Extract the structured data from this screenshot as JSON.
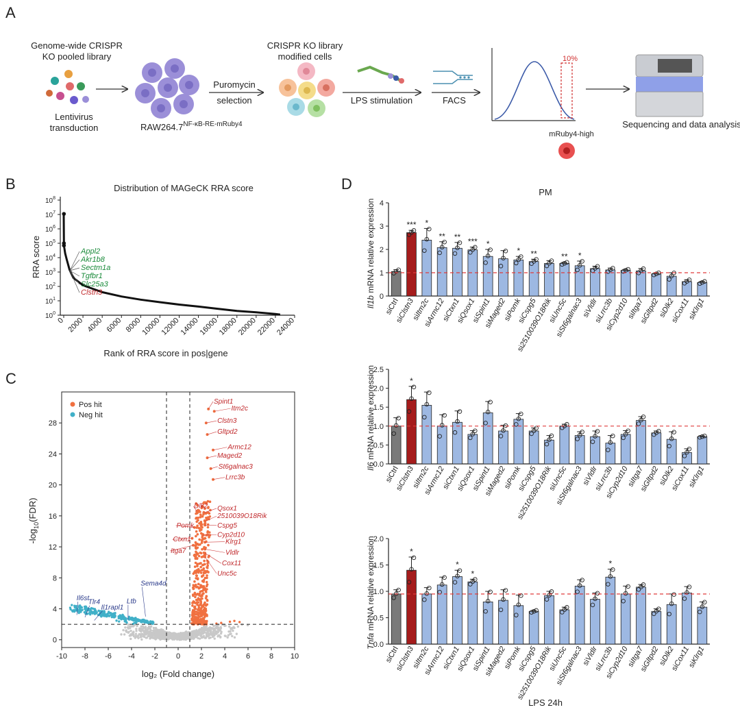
{
  "panel_letters": {
    "a": "A",
    "b": "B",
    "c": "C",
    "d": "D"
  },
  "panel_a": {
    "step1_title_line1": "Genome-wide CRISPR",
    "step1_title_line2": "KO pooled library",
    "lentivirus_line1": "Lentivirus",
    "lentivirus_line2": "transduction",
    "cell_line_base": "RAW264.7",
    "cell_line_sup": "NF-κB-RE-mRuby4",
    "puromycin_line1": "Puromycin",
    "puromycin_line2": "selection",
    "modified_line1": "CRISPR KO library",
    "modified_line2": "modified cells",
    "lps": "LPS stimulation",
    "facs": "FACS",
    "gate_label": "10%",
    "mruby_label": "mRuby4-high",
    "sequencing": "Sequencing and data analysis",
    "colors": {
      "cell": "#9b8fd8",
      "curve": "#3b5aa8",
      "gate": "#d03030"
    }
  },
  "panel_b": {
    "chart_data": {
      "type": "line",
      "title": "Distribution of MAGeCK RRA score",
      "xlabel": "Rank of RRA score in pos|gene",
      "ylabel": "RRA score",
      "xlim": [
        0,
        24000
      ],
      "x_ticks": [
        "0",
        "2000",
        "4000",
        "6000",
        "8000",
        "10000",
        "12000",
        "14000",
        "16000",
        "18000",
        "20000",
        "22000",
        "24000"
      ],
      "ylim_log10": [
        0,
        8
      ],
      "y_tick_base": "10",
      "y_tick_exps": [
        "0",
        "1",
        "2",
        "3",
        "4",
        "5",
        "6",
        "7",
        "8"
      ],
      "curve": [
        [
          0,
          10000000
        ],
        [
          20,
          100000
        ],
        [
          60,
          50000
        ],
        [
          150,
          20000
        ],
        [
          300,
          8000
        ],
        [
          600,
          1500
        ],
        [
          1000,
          400
        ],
        [
          2000,
          120
        ],
        [
          4000,
          40
        ],
        [
          6000,
          20
        ],
        [
          8000,
          12
        ],
        [
          10000,
          8
        ],
        [
          12000,
          5.5
        ],
        [
          14000,
          4
        ],
        [
          16000,
          2.8
        ],
        [
          18000,
          2
        ],
        [
          20000,
          1.6
        ],
        [
          22000,
          1.2
        ],
        [
          22500,
          1.1
        ]
      ],
      "outliers": [
        [
          20,
          11000000
        ],
        [
          20,
          100000
        ],
        [
          20,
          70000
        ]
      ],
      "labels": [
        {
          "text": "Appl2",
          "color": "#1a8a3a"
        },
        {
          "text": "Akr1b8",
          "color": "#1a8a3a"
        },
        {
          "text": "Sectm1a",
          "color": "#1a8a3a"
        },
        {
          "text": "Tgfbr1",
          "color": "#1a8a3a"
        },
        {
          "text": "Slc25a3",
          "color": "#1a8a3a"
        },
        {
          "text": "Clstn3",
          "color": "#c0282b"
        }
      ]
    }
  },
  "panel_c": {
    "chart_data": {
      "type": "scatter",
      "xlabel": "log₂ (Fold change)",
      "ylabel_base": "-log",
      "ylabel_sub": "10",
      "ylabel_tail": "(FDR)",
      "xlim": [
        -10,
        10
      ],
      "ylim": [
        -1,
        32
      ],
      "x_ticks": [
        "-10",
        "-8",
        "-6",
        "-4",
        "-2",
        "0",
        "2",
        "4",
        "6",
        "8",
        "10"
      ],
      "y_ticks": [
        "0",
        "4",
        "8",
        "12",
        "16",
        "20",
        "24",
        "28"
      ],
      "vlines": [
        -1,
        1
      ],
      "hline": 2,
      "legend": [
        {
          "name": "Pos hit",
          "color": "#f07040"
        },
        {
          "name": "Neg hit",
          "color": "#40b0c8"
        }
      ],
      "pos_labels": [
        {
          "name": "Spint1",
          "x": 2.6,
          "y": 29.8,
          "lx": 3.0,
          "ly": 30.5
        },
        {
          "name": "Itm2c",
          "x": 3.1,
          "y": 29.5,
          "lx": 4.5,
          "ly": 29.6
        },
        {
          "name": "Clstn3",
          "x": 2.4,
          "y": 28.0,
          "lx": 3.3,
          "ly": 28.0
        },
        {
          "name": "Gltpd2",
          "x": 2.5,
          "y": 26.5,
          "lx": 3.3,
          "ly": 26.6
        },
        {
          "name": "Armc12",
          "x": 3.0,
          "y": 24.5,
          "lx": 4.2,
          "ly": 24.6
        },
        {
          "name": "Maged2",
          "x": 2.5,
          "y": 23.5,
          "lx": 3.3,
          "ly": 23.5
        },
        {
          "name": "St6galnac3",
          "x": 2.8,
          "y": 22.1,
          "lx": 3.4,
          "ly": 22.1
        },
        {
          "name": "Lrrc3b",
          "x": 3.0,
          "y": 20.7,
          "lx": 4.0,
          "ly": 20.7
        },
        {
          "name": "Dlk2",
          "x": 1.6,
          "y": 16.6,
          "lx": 1.3,
          "ly": 17.0
        },
        {
          "name": "Qsox1",
          "x": 2.2,
          "y": 16.4,
          "lx": 3.3,
          "ly": 16.7
        },
        {
          "name": "2510039O18Rik",
          "x": 2.3,
          "y": 15.3,
          "lx": 3.3,
          "ly": 15.7
        },
        {
          "name": "Cspg5",
          "x": 2.3,
          "y": 14.8,
          "lx": 3.3,
          "ly": 14.5
        },
        {
          "name": "Pomk",
          "x": 1.4,
          "y": 14.5,
          "lx": -0.2,
          "ly": 14.5
        },
        {
          "name": "Cyp2d10",
          "x": 2.1,
          "y": 13.5,
          "lx": 3.3,
          "ly": 13.3
        },
        {
          "name": "Ctxn1",
          "x": 1.2,
          "y": 13.1,
          "lx": -0.5,
          "ly": 12.7
        },
        {
          "name": "Klrg1",
          "x": 2.3,
          "y": 12.6,
          "lx": 4.0,
          "ly": 12.4
        },
        {
          "name": "Itga7",
          "x": 1.3,
          "y": 12.2,
          "lx": -0.7,
          "ly": 11.2
        },
        {
          "name": "Vldlr",
          "x": 2.3,
          "y": 11.7,
          "lx": 4.0,
          "ly": 11.0
        },
        {
          "name": "Cox11",
          "x": 2.3,
          "y": 11.2,
          "lx": 3.7,
          "ly": 9.6
        },
        {
          "name": "Unc5c",
          "x": 2.3,
          "y": 10.7,
          "lx": 3.3,
          "ly": 8.3
        }
      ],
      "neg_labels": [
        {
          "name": "Il6st",
          "x": -8.7,
          "y": 3.2,
          "lx": -8.6,
          "ly": 5.1
        },
        {
          "name": "Tlr4",
          "x": -8.0,
          "y": 2.9,
          "lx": -7.6,
          "ly": 4.6
        },
        {
          "name": "Il1rapl1",
          "x": -7.2,
          "y": 2.5,
          "lx": -6.5,
          "ly": 3.9
        },
        {
          "name": "Ltb",
          "x": -4.3,
          "y": 2.6,
          "lx": -4.3,
          "ly": 4.7
        },
        {
          "name": "Sema4d",
          "x": -2.8,
          "y": 3.0,
          "lx": -3.1,
          "ly": 7.0
        }
      ]
    }
  },
  "panel_d": {
    "title": "PM",
    "footer": "LPS 24h",
    "colors": {
      "ctrl": "#7a7a7a",
      "hit": "#a51c1c",
      "bar": "#9db8e2",
      "dash": "#e03b3b"
    },
    "chart_data": [
      {
        "type": "bar",
        "gene": "Il1b",
        "ylabel_tail": " mRNA relative expression",
        "ylim": [
          0,
          4
        ],
        "y_ticks": [
          "0",
          "1",
          "2",
          "3",
          "4"
        ],
        "baseline": 1.0,
        "categories": [
          "siCtrl",
          "siClstn3",
          "siItm2c",
          "siArmc12",
          "siCtxn1",
          "siQsox1",
          "siSpint1",
          "siMaged2",
          "siPomk",
          "siCspg5",
          "si2510039O18Rik",
          "siUnc5c",
          "siSt6galnac3",
          "siVldlr",
          "siLrrc3b",
          "siCyp2d10",
          "siItga7",
          "siGltpd2",
          "siDlk2",
          "siCox11",
          "siKlrg1"
        ],
        "values": [
          1.05,
          2.72,
          2.4,
          2.08,
          2.05,
          1.98,
          1.7,
          1.6,
          1.55,
          1.48,
          1.4,
          1.4,
          1.3,
          1.18,
          1.12,
          1.1,
          1.08,
          0.95,
          0.85,
          0.62,
          0.58
        ],
        "errors": [
          0.08,
          0.1,
          0.5,
          0.25,
          0.25,
          0.12,
          0.3,
          0.35,
          0.15,
          0.1,
          0.12,
          0.05,
          0.2,
          0.1,
          0.08,
          0.05,
          0.1,
          0.05,
          0.15,
          0.08,
          0.05
        ],
        "sig": [
          "",
          "***",
          "*",
          "**",
          "**",
          "***",
          "*",
          "",
          "*",
          "**",
          "",
          "**",
          "*",
          "",
          "",
          "",
          "",
          "",
          "",
          "",
          ""
        ]
      },
      {
        "type": "bar",
        "gene": "Il6",
        "ylabel_tail": " mRNA relative expression",
        "ylim": [
          0,
          2.5
        ],
        "y_ticks": [
          "0.0",
          "0.5",
          "1.0",
          "1.5",
          "2.0",
          "2.5"
        ],
        "baseline": 1.0,
        "categories": [
          "siCtrl",
          "siClstn3",
          "siItm2c",
          "siArmc12",
          "siCtxn1",
          "siQsox1",
          "siSpint1",
          "siMaged2",
          "siPomk",
          "siCspg5",
          "si2510039O18Rik",
          "siUnc5c",
          "siSt6galnac3",
          "siVldlr",
          "siLrrc3b",
          "siCyp2d10",
          "siItga7",
          "siGltpd2",
          "siDlk2",
          "siCox11",
          "siKlrg1"
        ],
        "values": [
          1.0,
          1.7,
          1.55,
          1.0,
          1.1,
          0.78,
          1.35,
          0.87,
          1.18,
          0.87,
          0.63,
          1.0,
          0.75,
          0.72,
          0.55,
          0.78,
          1.15,
          0.82,
          0.65,
          0.3,
          0.72
        ],
        "errors": [
          0.22,
          0.35,
          0.35,
          0.3,
          0.3,
          0.1,
          0.3,
          0.15,
          0.15,
          0.08,
          0.12,
          0.05,
          0.1,
          0.15,
          0.2,
          0.1,
          0.1,
          0.05,
          0.2,
          0.1,
          0.02
        ],
        "sig": [
          "",
          "*",
          "",
          "",
          "",
          "",
          "",
          "",
          "",
          "",
          "",
          "",
          "",
          "",
          "",
          "",
          "",
          "",
          "",
          "",
          ""
        ]
      },
      {
        "type": "bar",
        "gene": "Tnfa",
        "ylabel_tail": " mRNA relative expression",
        "ylim": [
          0,
          2.0
        ],
        "y_ticks": [
          "0.0",
          "0.5",
          "1.0",
          "1.5",
          "2.0"
        ],
        "baseline": 0.95,
        "categories": [
          "siCtrl",
          "siClstn3",
          "siItm2c",
          "siArmc12",
          "siCtxn1",
          "siQsox1",
          "siSpint1",
          "siMaged2",
          "siPomk",
          "siCspg5",
          "si2510039O18Rik",
          "siUnc5c",
          "siSt6galnac3",
          "siVldlr",
          "siLrrc3b",
          "siCyp2d10",
          "siItga7",
          "siGltpd2",
          "siDlk2",
          "siCox11",
          "siKlrg1"
        ],
        "values": [
          0.95,
          1.4,
          0.95,
          1.12,
          1.28,
          1.18,
          0.8,
          0.83,
          0.73,
          0.62,
          0.92,
          0.65,
          1.1,
          0.85,
          1.27,
          0.95,
          1.08,
          0.62,
          0.75,
          0.97,
          0.7
        ],
        "errors": [
          0.08,
          0.25,
          0.12,
          0.15,
          0.12,
          0.05,
          0.2,
          0.2,
          0.2,
          0.02,
          0.08,
          0.05,
          0.12,
          0.12,
          0.15,
          0.15,
          0.05,
          0.05,
          0.2,
          0.12,
          0.1
        ],
        "sig": [
          "",
          "*",
          "",
          "",
          "*",
          "*",
          "",
          "",
          "",
          "",
          "",
          "",
          "",
          "",
          "*",
          "",
          "",
          "",
          "",
          "",
          ""
        ]
      }
    ]
  }
}
